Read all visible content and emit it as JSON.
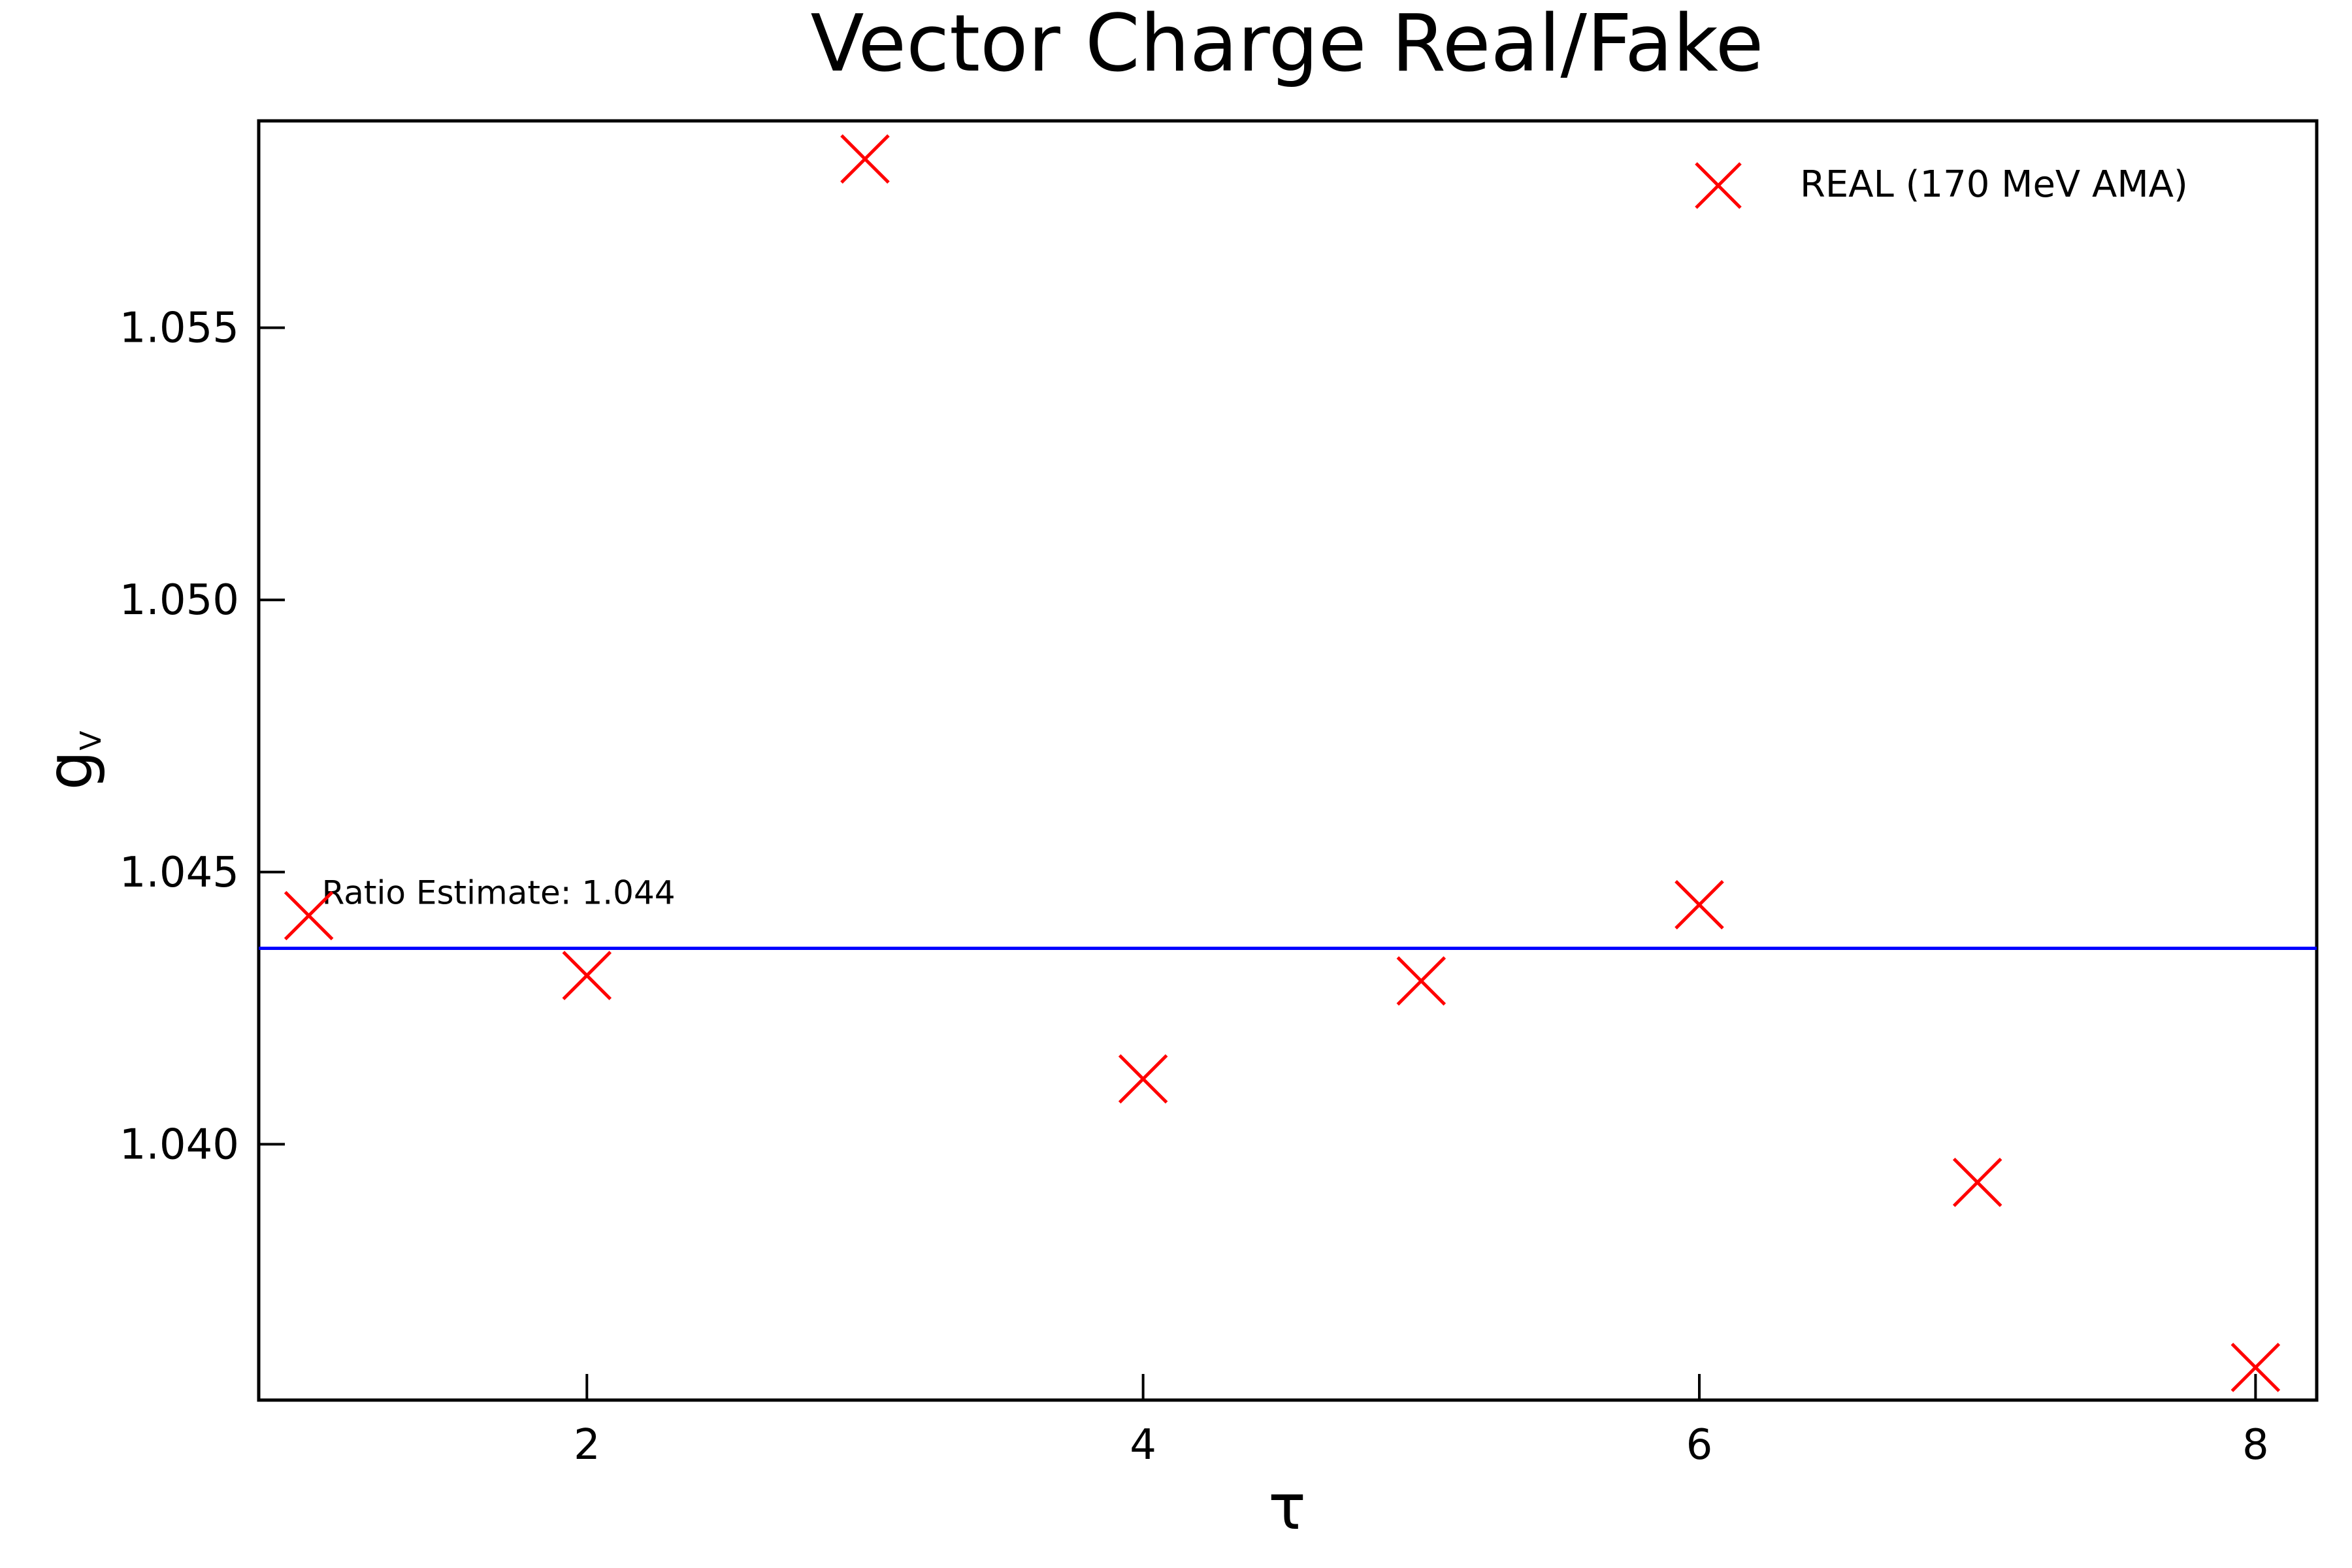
{
  "chart_data": {
    "type": "scatter",
    "title": "Vector Charge Real/Fake",
    "xlabel": "τ",
    "ylabel": "g",
    "ylabel_subscript": "V",
    "xlim": [
      0.82,
      8.22
    ],
    "ylim": [
      1.0353,
      1.0588
    ],
    "xticks": [
      2,
      4,
      6,
      8
    ],
    "yticks": [
      1.04,
      1.045,
      1.05,
      1.055
    ],
    "ytick_labels": [
      "1.040",
      "1.045",
      "1.050",
      "1.055"
    ],
    "grid": false,
    "legend_position": "top-right",
    "series": [
      {
        "name": "REAL (170 MeV AMA)",
        "color": "#ff0000",
        "marker": "x",
        "x": [
          1,
          2,
          3,
          4,
          5,
          6,
          7,
          8
        ],
        "y": [
          1.0442,
          1.0431,
          1.0581,
          1.0412,
          1.043,
          1.0444,
          1.0393,
          1.0359
        ]
      }
    ],
    "reference_line": {
      "y": 1.0436,
      "color": "#0000ff",
      "label": "Ratio Estimate: 1.044"
    }
  }
}
